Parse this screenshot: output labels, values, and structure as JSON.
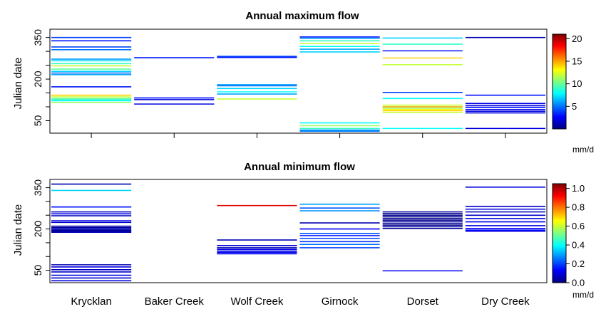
{
  "chart_data": [
    {
      "type": "line",
      "title": "Annual maximum flow",
      "ylabel": "Julian date",
      "ylim": [
        5,
        380
      ],
      "yticks": [
        50,
        200,
        350
      ],
      "categories": [
        "Krycklan",
        "Baker Creek",
        "Wolf Creek",
        "Girnock",
        "Dorset",
        "Dry Creek"
      ],
      "colorbar": {
        "unit": "mm/d",
        "range": [
          0,
          21
        ],
        "ticks": [
          5,
          10,
          15,
          20
        ]
      },
      "grid": false,
      "series": [
        {
          "category": "Krycklan",
          "values": [
            {
              "day": 350,
              "flow": 4
            },
            {
              "day": 338,
              "flow": 3
            },
            {
              "day": 316,
              "flow": 4
            },
            {
              "day": 306,
              "flow": 5
            },
            {
              "day": 272,
              "flow": 6
            },
            {
              "day": 266,
              "flow": 7
            },
            {
              "day": 256,
              "flow": 9
            },
            {
              "day": 248,
              "flow": 12
            },
            {
              "day": 236,
              "flow": 10
            },
            {
              "day": 228,
              "flow": 7
            },
            {
              "day": 222,
              "flow": 5
            },
            {
              "day": 216,
              "flow": 6
            },
            {
              "day": 172,
              "flow": 3
            },
            {
              "day": 142,
              "flow": 14
            },
            {
              "day": 136,
              "flow": 12
            },
            {
              "day": 130,
              "flow": 10
            },
            {
              "day": 126,
              "flow": 9
            },
            {
              "day": 122,
              "flow": 8
            },
            {
              "day": 116,
              "flow": 11
            }
          ]
        },
        {
          "category": "Baker Creek",
          "values": [
            {
              "day": 277,
              "flow": 3
            },
            {
              "day": 132,
              "flow": 3
            },
            {
              "day": 126,
              "flow": 2
            },
            {
              "day": 110,
              "flow": 2
            }
          ]
        },
        {
          "category": "Wolf Creek",
          "values": [
            {
              "day": 282,
              "flow": 4
            },
            {
              "day": 278,
              "flow": 3
            },
            {
              "day": 180,
              "flow": 6
            },
            {
              "day": 176,
              "flow": 5
            },
            {
              "day": 166,
              "flow": 7
            },
            {
              "day": 154,
              "flow": 8
            },
            {
              "day": 146,
              "flow": 6
            },
            {
              "day": 128,
              "flow": 12
            }
          ]
        },
        {
          "category": "Girnock",
          "values": [
            {
              "day": 352,
              "flow": 3
            },
            {
              "day": 347,
              "flow": 6
            },
            {
              "day": 338,
              "flow": 9
            },
            {
              "day": 328,
              "flow": 12
            },
            {
              "day": 318,
              "flow": 8
            },
            {
              "day": 308,
              "flow": 6
            },
            {
              "day": 298,
              "flow": 7
            },
            {
              "day": 42,
              "flow": 8
            },
            {
              "day": 32,
              "flow": 11
            },
            {
              "day": 22,
              "flow": 9
            },
            {
              "day": 16,
              "flow": 6
            },
            {
              "day": 12,
              "flow": 5
            }
          ]
        },
        {
          "category": "Dorset",
          "values": [
            {
              "day": 348,
              "flow": 7
            },
            {
              "day": 326,
              "flow": 9
            },
            {
              "day": 302,
              "flow": 3
            },
            {
              "day": 276,
              "flow": 14
            },
            {
              "day": 252,
              "flow": 12
            },
            {
              "day": 152,
              "flow": 4
            },
            {
              "day": 130,
              "flow": 8
            },
            {
              "day": 106,
              "flow": 12
            },
            {
              "day": 100,
              "flow": 15
            },
            {
              "day": 95,
              "flow": 11
            },
            {
              "day": 90,
              "flow": 13
            },
            {
              "day": 86,
              "flow": 14
            },
            {
              "day": 80,
              "flow": 12
            },
            {
              "day": 22,
              "flow": 8
            }
          ]
        },
        {
          "category": "Dry Creek",
          "values": [
            {
              "day": 350,
              "flow": 1
            },
            {
              "day": 142,
              "flow": 3
            },
            {
              "day": 112,
              "flow": 2
            },
            {
              "day": 104,
              "flow": 2
            },
            {
              "day": 98,
              "flow": 3
            },
            {
              "day": 90,
              "flow": 2
            },
            {
              "day": 84,
              "flow": 2
            },
            {
              "day": 78,
              "flow": 2
            },
            {
              "day": 22,
              "flow": 2
            }
          ]
        }
      ]
    },
    {
      "type": "line",
      "title": "Annual minimum flow",
      "ylabel": "Julian date",
      "ylim": [
        5,
        380
      ],
      "yticks": [
        50,
        200,
        350
      ],
      "categories": [
        "Krycklan",
        "Baker Creek",
        "Wolf Creek",
        "Girnock",
        "Dorset",
        "Dry Creek"
      ],
      "colorbar": {
        "unit": "mm/d",
        "range": [
          0,
          1.05
        ],
        "ticks": [
          "0.0",
          "0.2",
          "0.4",
          "0.6",
          "0.8",
          "1.0"
        ]
      },
      "grid": false,
      "series": [
        {
          "category": "Krycklan",
          "values": [
            {
              "day": 363,
              "flow": 0.05
            },
            {
              "day": 340,
              "flow": 0.35
            },
            {
              "day": 280,
              "flow": 0.15
            },
            {
              "day": 262,
              "flow": 0.08
            },
            {
              "day": 255,
              "flow": 0.1
            },
            {
              "day": 248,
              "flow": 0.06
            },
            {
              "day": 230,
              "flow": 0.1
            },
            {
              "day": 224,
              "flow": 0.08
            },
            {
              "day": 210,
              "flow": 0.05
            },
            {
              "day": 205,
              "flow": 0.03
            },
            {
              "day": 200,
              "flow": 0.05
            },
            {
              "day": 196,
              "flow": 0.04
            },
            {
              "day": 192,
              "flow": 0.03
            },
            {
              "day": 188,
              "flow": 0.05
            },
            {
              "day": 70,
              "flow": 0.05
            },
            {
              "day": 62,
              "flow": 0.1
            },
            {
              "day": 52,
              "flow": 0.06
            },
            {
              "day": 44,
              "flow": 0.08
            },
            {
              "day": 32,
              "flow": 0.1
            },
            {
              "day": 22,
              "flow": 0.08
            },
            {
              "day": 12,
              "flow": 0.1
            }
          ]
        },
        {
          "category": "Wolf Creek",
          "values": [
            {
              "day": 285,
              "flow": 0.95
            },
            {
              "day": 160,
              "flow": 0.05
            },
            {
              "day": 140,
              "flow": 0.08
            },
            {
              "day": 132,
              "flow": 0.06
            },
            {
              "day": 126,
              "flow": 0.1
            },
            {
              "day": 120,
              "flow": 0.12
            },
            {
              "day": 115,
              "flow": 0.1
            },
            {
              "day": 110,
              "flow": 0.12
            }
          ]
        },
        {
          "category": "Girnock",
          "values": [
            {
              "day": 290,
              "flow": 0.3
            },
            {
              "day": 276,
              "flow": 0.22
            },
            {
              "day": 266,
              "flow": 0.28
            },
            {
              "day": 222,
              "flow": 0.05
            },
            {
              "day": 200,
              "flow": 0.12
            },
            {
              "day": 184,
              "flow": 0.22
            },
            {
              "day": 176,
              "flow": 0.15
            },
            {
              "day": 166,
              "flow": 0.2
            },
            {
              "day": 154,
              "flow": 0.18
            },
            {
              "day": 144,
              "flow": 0.25
            },
            {
              "day": 132,
              "flow": 0.2
            }
          ]
        },
        {
          "category": "Dorset",
          "values": [
            {
              "day": 262,
              "flow": 0.03
            },
            {
              "day": 256,
              "flow": 0.02
            },
            {
              "day": 250,
              "flow": 0.01
            },
            {
              "day": 244,
              "flow": 0.02
            },
            {
              "day": 238,
              "flow": 0.01
            },
            {
              "day": 232,
              "flow": 0.02
            },
            {
              "day": 226,
              "flow": 0.03
            },
            {
              "day": 220,
              "flow": 0.02
            },
            {
              "day": 214,
              "flow": 0.01
            },
            {
              "day": 208,
              "flow": 0.04
            },
            {
              "day": 202,
              "flow": 0.02
            },
            {
              "day": 48,
              "flow": 0.12
            }
          ]
        },
        {
          "category": "Dry Creek",
          "values": [
            {
              "day": 352,
              "flow": 0.1
            },
            {
              "day": 282,
              "flow": 0.08
            },
            {
              "day": 272,
              "flow": 0.1
            },
            {
              "day": 262,
              "flow": 0.06
            },
            {
              "day": 250,
              "flow": 0.08
            },
            {
              "day": 238,
              "flow": 0.1
            },
            {
              "day": 226,
              "flow": 0.12
            },
            {
              "day": 212,
              "flow": 0.1
            },
            {
              "day": 202,
              "flow": 0.12
            },
            {
              "day": 196,
              "flow": 0.14
            },
            {
              "day": 192,
              "flow": 0.1
            }
          ]
        }
      ]
    }
  ]
}
